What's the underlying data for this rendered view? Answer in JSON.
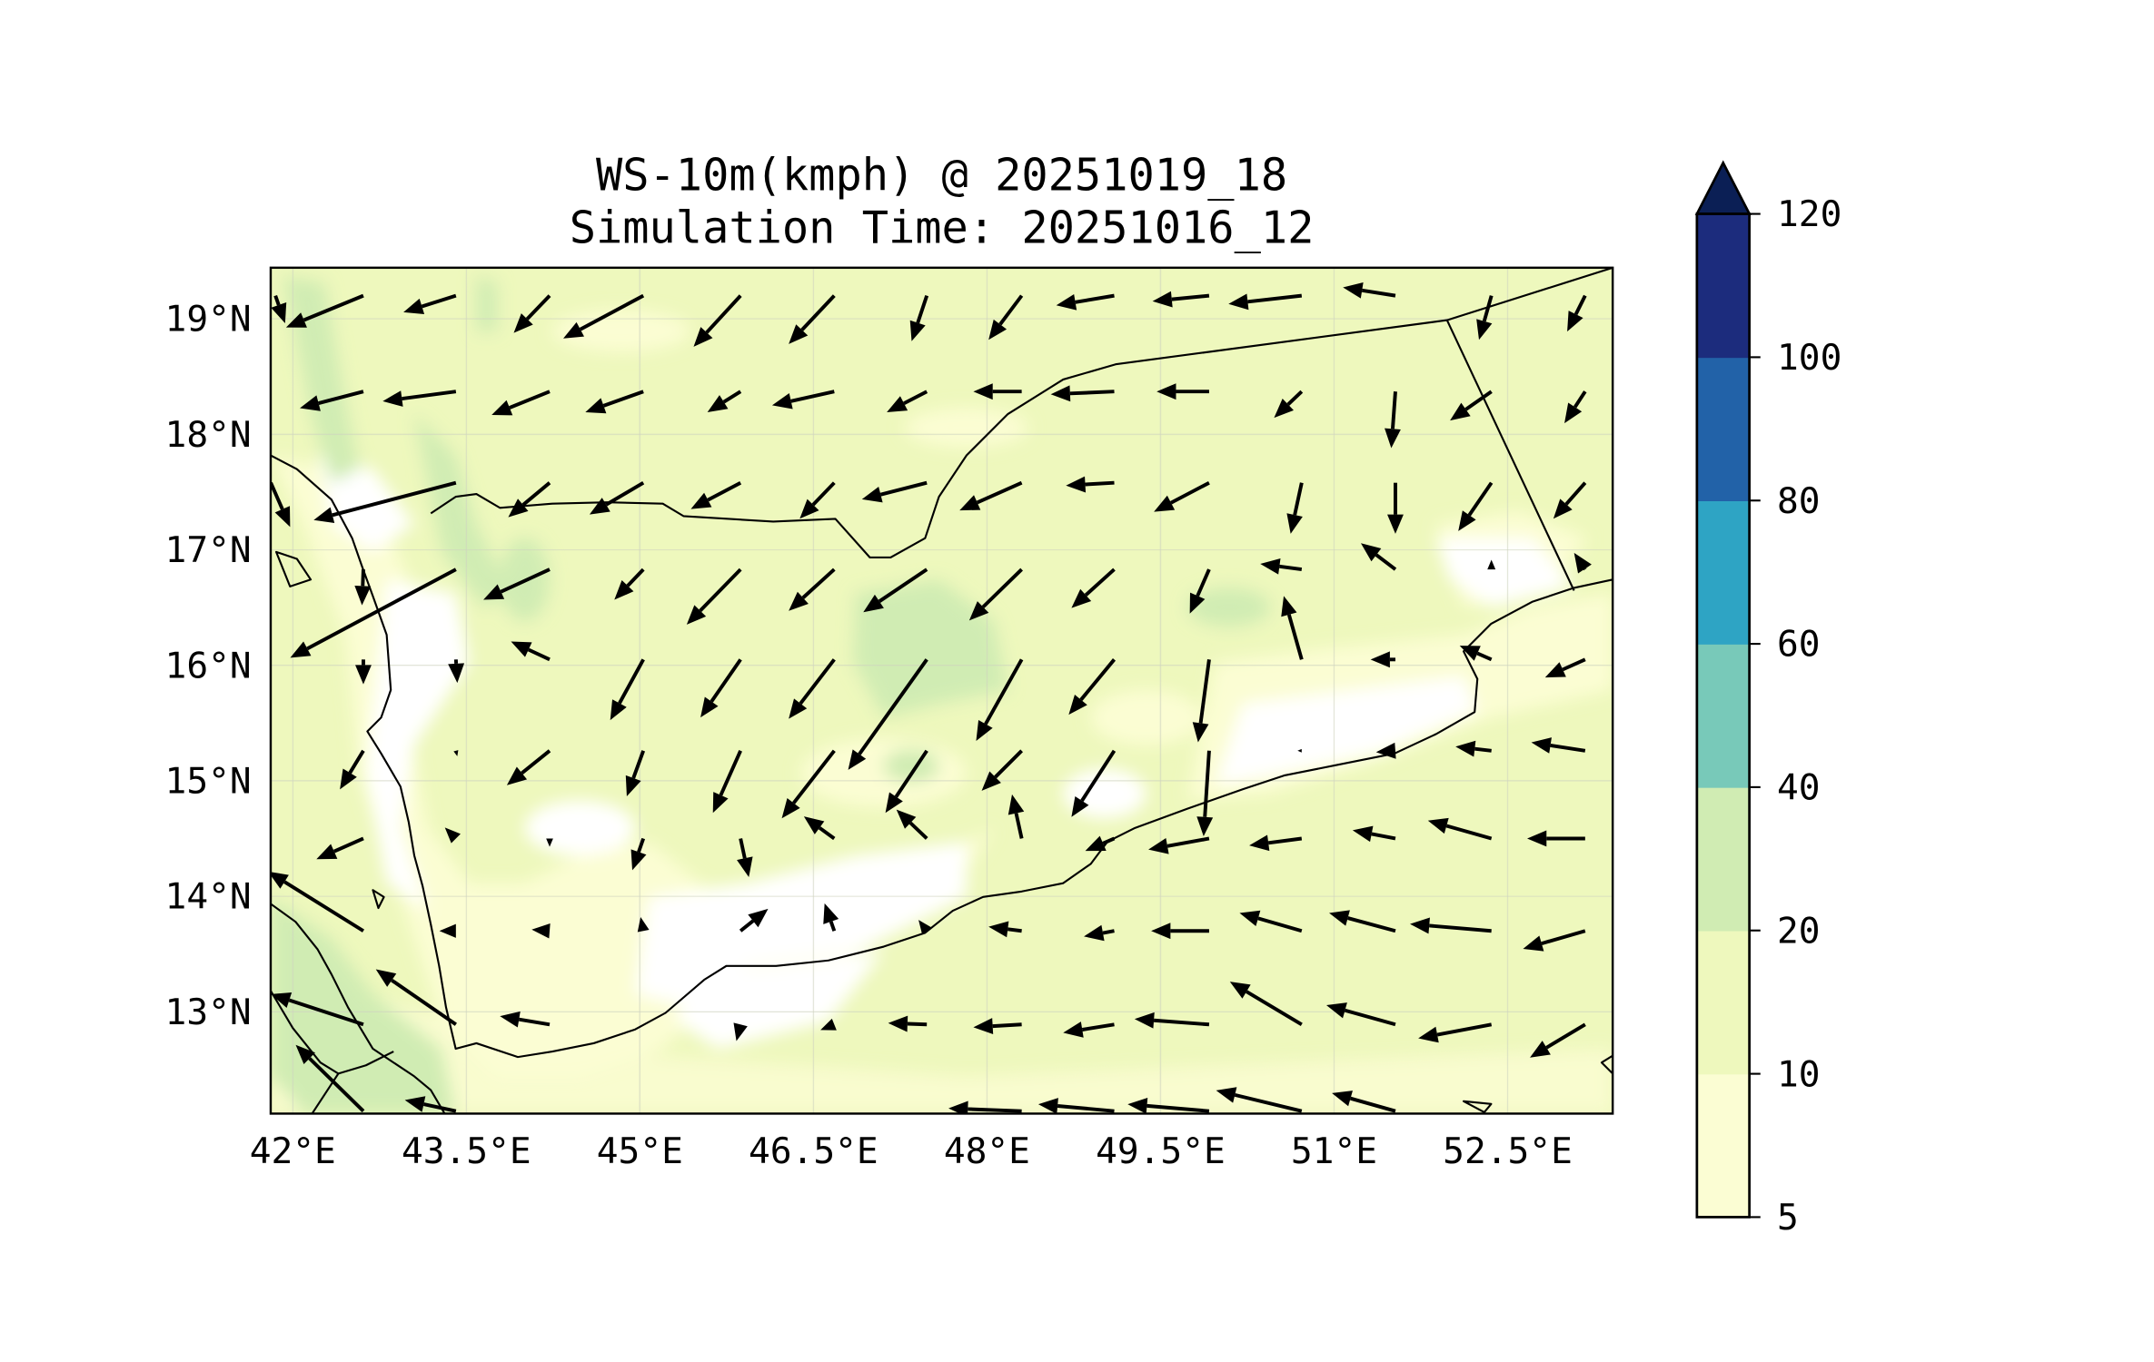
{
  "chart_data": {
    "type": "map-quiver",
    "title": "WS-10m(kmph) @ 20251019_18",
    "subtitle": "Simulation Time: 20251016_12",
    "xlim": [
      41.81,
      53.4
    ],
    "ylim": [
      12.09,
      19.44
    ],
    "grid": true,
    "xticks": [
      {
        "value": 42,
        "label": "42°E"
      },
      {
        "value": 43.5,
        "label": "43.5°E"
      },
      {
        "value": 45,
        "label": "45°E"
      },
      {
        "value": 46.5,
        "label": "46.5°E"
      },
      {
        "value": 48,
        "label": "48°E"
      },
      {
        "value": 49.5,
        "label": "49.5°E"
      },
      {
        "value": 51,
        "label": "51°E"
      },
      {
        "value": 52.5,
        "label": "52.5°E"
      }
    ],
    "yticks": [
      {
        "value": 19,
        "label": "19°N"
      },
      {
        "value": 18,
        "label": "18°N"
      },
      {
        "value": 17,
        "label": "17°N"
      },
      {
        "value": 16,
        "label": "16°N"
      },
      {
        "value": 15,
        "label": "15°N"
      },
      {
        "value": 14,
        "label": "14°N"
      },
      {
        "value": 13,
        "label": "13°N"
      }
    ],
    "colorbar": {
      "levels": [
        5,
        10,
        20,
        40,
        60,
        80,
        100,
        120
      ],
      "labels": [
        "5",
        "10",
        "20",
        "40",
        "60",
        "80",
        "100",
        "120"
      ],
      "colors": [
        "#fbfdd3",
        "#eef8bd",
        "#d0ecb3",
        "#78c9b9",
        "#2ea4c4",
        "#2262a8",
        "#1c2c7d"
      ],
      "extend_color": "#0b1f55",
      "extend": "max"
    },
    "wind_vectors_note": "rows of [lon, u, v]",
    "wind_rows": [
      {
        "lat": 19.2,
        "vectors": [
          [
            41.85,
            7,
            -20
          ],
          [
            42.61,
            -56,
            -23
          ],
          [
            43.41,
            -38,
            -12
          ],
          [
            44.22,
            -26,
            -27
          ],
          [
            45.03,
            -58,
            -31
          ],
          [
            45.87,
            -34,
            -37
          ],
          [
            46.68,
            -33,
            -35
          ],
          [
            47.48,
            -11,
            -33
          ],
          [
            48.3,
            -24,
            -32
          ],
          [
            49.1,
            -42,
            -7
          ],
          [
            49.92,
            -41,
            -4
          ],
          [
            50.72,
            -53,
            -6
          ],
          [
            51.53,
            -38,
            6
          ],
          [
            52.36,
            -9,
            -32
          ],
          [
            53.17,
            -13,
            -26
          ]
        ]
      },
      {
        "lat": 18.37,
        "vectors": [
          [
            42.61,
            -46,
            -12
          ],
          [
            43.41,
            -53,
            -7
          ],
          [
            44.22,
            -42,
            -17
          ],
          [
            45.03,
            -42,
            -15
          ],
          [
            45.87,
            -24,
            -15
          ],
          [
            46.68,
            -45,
            -10
          ],
          [
            47.48,
            -29,
            -15
          ],
          [
            48.3,
            -35,
            0
          ],
          [
            49.1,
            -46,
            -2
          ],
          [
            49.92,
            -38,
            0
          ],
          [
            50.72,
            -20,
            -19
          ],
          [
            51.53,
            -3,
            -41
          ],
          [
            52.36,
            -30,
            -21
          ],
          [
            53.17,
            -15,
            -23
          ]
        ]
      },
      {
        "lat": 17.58,
        "vectors": [
          [
            41.81,
            14,
            -32
          ],
          [
            43.41,
            -103,
            -27
          ],
          [
            44.22,
            -30,
            -25
          ],
          [
            45.03,
            -39,
            -23
          ],
          [
            45.87,
            -36,
            -19
          ],
          [
            46.68,
            -25,
            -26
          ],
          [
            47.48,
            -47,
            -12
          ],
          [
            48.3,
            -45,
            -20
          ],
          [
            49.1,
            -35,
            -2
          ],
          [
            49.92,
            -40,
            -21
          ],
          [
            50.72,
            -8,
            -37
          ],
          [
            51.53,
            0,
            -37
          ],
          [
            52.36,
            -24,
            -35
          ],
          [
            53.17,
            -23,
            -26
          ]
        ]
      },
      {
        "lat": 16.83,
        "vectors": [
          [
            42.61,
            -1,
            -26
          ],
          [
            43.41,
            -120,
            -64
          ],
          [
            44.22,
            -48,
            -22
          ],
          [
            45.03,
            -21,
            -22
          ],
          [
            45.87,
            -39,
            -40
          ],
          [
            46.68,
            -33,
            -30
          ],
          [
            47.48,
            -46,
            -31
          ],
          [
            48.3,
            -38,
            -37
          ],
          [
            49.1,
            -31,
            -28
          ],
          [
            49.92,
            -14,
            -32
          ],
          [
            50.72,
            -30,
            4
          ],
          [
            51.53,
            -25,
            19
          ],
          [
            52.36,
            0,
            7
          ],
          [
            53.17,
            -8,
            12
          ]
        ]
      },
      {
        "lat": 16.05,
        "vectors": [
          [
            42.61,
            0,
            -18
          ],
          [
            43.41,
            1,
            -17
          ],
          [
            44.22,
            -28,
            13
          ],
          [
            45.03,
            -24,
            -44
          ],
          [
            45.87,
            -29,
            -42
          ],
          [
            46.68,
            -33,
            -43
          ],
          [
            47.48,
            -57,
            -80
          ],
          [
            48.3,
            -33,
            -59
          ],
          [
            49.1,
            -33,
            -40
          ],
          [
            49.92,
            -8,
            -60
          ],
          [
            50.72,
            -13,
            46
          ],
          [
            51.53,
            -18,
            0
          ],
          [
            52.36,
            -23,
            10
          ],
          [
            53.17,
            -29,
            -13
          ]
        ]
      },
      {
        "lat": 15.26,
        "vectors": [
          [
            42.61,
            -17,
            -28
          ],
          [
            43.41,
            1,
            -4
          ],
          [
            44.22,
            -31,
            -25
          ],
          [
            45.03,
            -12,
            -33
          ],
          [
            45.87,
            -20,
            -45
          ],
          [
            46.68,
            -38,
            -49
          ],
          [
            47.48,
            -30,
            -45
          ],
          [
            48.3,
            -29,
            -29
          ],
          [
            49.1,
            -31,
            -48
          ],
          [
            49.92,
            -4,
            -62
          ],
          [
            50.72,
            -3,
            0
          ],
          [
            51.53,
            -14,
            -1
          ],
          [
            52.36,
            -26,
            3
          ],
          [
            53.17,
            -39,
            6
          ]
        ]
      },
      {
        "lat": 14.5,
        "vectors": [
          [
            42.61,
            -34,
            -15
          ],
          [
            43.41,
            -8,
            8
          ],
          [
            44.22,
            0,
            -6
          ],
          [
            45.03,
            -8,
            -23
          ],
          [
            45.87,
            6,
            -28
          ],
          [
            46.68,
            -22,
            16
          ],
          [
            47.48,
            -22,
            21
          ],
          [
            48.3,
            -7,
            32
          ],
          [
            49.1,
            -21,
            -9
          ],
          [
            49.92,
            -44,
            -8
          ],
          [
            50.72,
            -38,
            -5
          ],
          [
            51.53,
            -31,
            6
          ],
          [
            52.36,
            -46,
            13
          ],
          [
            53.17,
            -42,
            0
          ]
        ]
      },
      {
        "lat": 13.7,
        "vectors": [
          [
            42.61,
            -69,
            43
          ],
          [
            43.41,
            -12,
            0
          ],
          [
            44.22,
            -13,
            1
          ],
          [
            45.03,
            -2,
            10
          ],
          [
            45.87,
            20,
            16
          ],
          [
            46.68,
            -7,
            20
          ],
          [
            47.48,
            -6,
            8
          ],
          [
            48.3,
            -24,
            3
          ],
          [
            49.1,
            -22,
            -4
          ],
          [
            49.92,
            -42,
            0
          ],
          [
            50.72,
            -45,
            13
          ],
          [
            51.53,
            -48,
            13
          ],
          [
            52.36,
            -59,
            5
          ],
          [
            53.17,
            -45,
            -13
          ]
        ]
      },
      {
        "lat": 12.89,
        "vectors": [
          [
            42.61,
            -67,
            22
          ],
          [
            43.41,
            -58,
            40
          ],
          [
            44.22,
            -36,
            6
          ],
          [
            45.87,
            -3,
            -12
          ],
          [
            46.68,
            -10,
            -4
          ],
          [
            47.48,
            -28,
            1
          ],
          [
            48.3,
            -35,
            -2
          ],
          [
            49.1,
            -37,
            -6
          ],
          [
            49.92,
            -54,
            4
          ],
          [
            50.72,
            -52,
            31
          ],
          [
            51.53,
            -50,
            14
          ],
          [
            52.36,
            -53,
            -10
          ],
          [
            53.17,
            -40,
            -24
          ]
        ]
      },
      {
        "lat": 12.14,
        "vectors": [
          [
            42.61,
            -49,
            48
          ],
          [
            43.41,
            -37,
            8
          ],
          [
            48.3,
            -53,
            2
          ],
          [
            49.1,
            -55,
            5
          ],
          [
            49.92,
            -59,
            5
          ],
          [
            50.72,
            -62,
            15
          ],
          [
            51.53,
            -46,
            13
          ]
        ]
      }
    ]
  }
}
